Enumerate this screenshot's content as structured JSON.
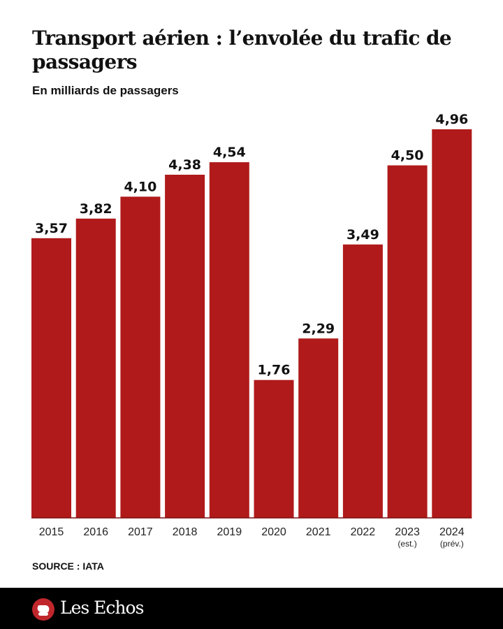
{
  "header": {
    "title": "Transport aérien : l’envolée du trafic de passagers",
    "subtitle": "En milliards de passagers"
  },
  "source": "SOURCE : IATA",
  "footer": {
    "brand": "Les Echos",
    "logo_icon": "les-echos-logo-icon"
  },
  "colors": {
    "bar": "#b01a1a",
    "text": "#111111",
    "footer_bg": "#000000"
  },
  "chart_data": {
    "type": "bar",
    "title": "Transport aérien : l’envolée du trafic de passagers",
    "subtitle": "En milliards de passagers",
    "xlabel": "",
    "ylabel": "En milliards de passagers",
    "categories": [
      "2015",
      "2016",
      "2017",
      "2018",
      "2019",
      "2020",
      "2021",
      "2022",
      "2023",
      "2024"
    ],
    "category_notes": [
      "",
      "",
      "",
      "",
      "",
      "",
      "",
      "",
      "(est.)",
      "(prév.)"
    ],
    "values": [
      3.57,
      3.82,
      4.1,
      4.38,
      4.54,
      1.76,
      2.29,
      3.49,
      4.5,
      4.96
    ],
    "value_labels": [
      "3,57",
      "3,82",
      "4,10",
      "4,38",
      "4,54",
      "1,76",
      "2,29",
      "3,49",
      "4,50",
      "4,96"
    ],
    "ylim": [
      0,
      4.96
    ],
    "grid": false,
    "legend": "none",
    "source": "SOURCE : IATA"
  }
}
